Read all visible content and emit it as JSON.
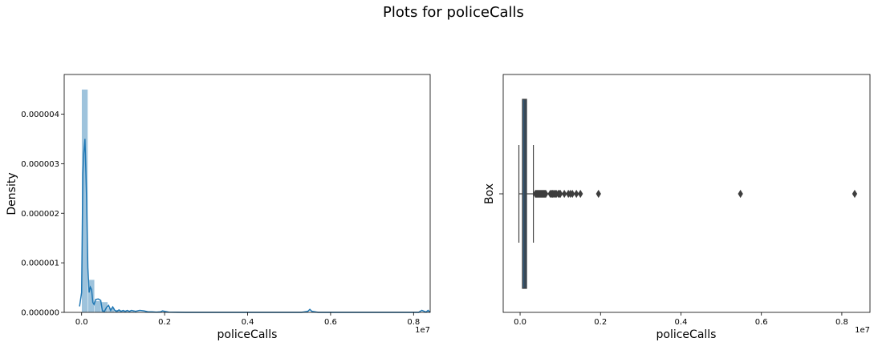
{
  "figure": {
    "suptitle": "Plots for policeCalls"
  },
  "chart_data": [
    {
      "type": "histogram",
      "xlabel": "policeCalls",
      "ylabel": "Density",
      "x_offset_label": "1e7",
      "xlim": [
        -0.042,
        0.84
      ],
      "ylim": [
        0,
        4.8e-06
      ],
      "x_ticks": [
        "0.0",
        "0.2",
        "0.4",
        "0.6",
        "0.8"
      ],
      "y_ticks": [
        "0.000000",
        "0.000001",
        "0.000002",
        "0.000003",
        "0.000004"
      ],
      "bar_color": "#9ec3dc",
      "line_color": "#1f77b4",
      "bins": [
        {
          "x0": 0.0,
          "x1": 0.015,
          "density": 4.5e-06
        },
        {
          "x0": 0.015,
          "x1": 0.031,
          "density": 6.6e-07
        },
        {
          "x0": 0.031,
          "x1": 0.047,
          "density": 2.3e-07
        },
        {
          "x0": 0.047,
          "x1": 0.063,
          "density": 2.1e-07
        },
        {
          "x0": 0.063,
          "x1": 0.079,
          "density": 9e-08
        },
        {
          "x0": 0.079,
          "x1": 0.095,
          "density": 5e-08
        },
        {
          "x0": 0.095,
          "x1": 0.111,
          "density": 4e-08
        },
        {
          "x0": 0.111,
          "x1": 0.127,
          "density": 2e-08
        },
        {
          "x0": 0.127,
          "x1": 0.143,
          "density": 1e-08
        },
        {
          "x0": 0.143,
          "x1": 0.159,
          "density": 1e-08
        }
      ],
      "kde": {
        "x": [
          -0.005,
          0.0,
          0.003,
          0.005,
          0.008,
          0.012,
          0.015,
          0.018,
          0.021,
          0.024,
          0.027,
          0.03,
          0.034,
          0.04,
          0.046,
          0.05,
          0.055,
          0.06,
          0.065,
          0.07,
          0.075,
          0.08,
          0.085,
          0.09,
          0.095,
          0.1,
          0.105,
          0.11,
          0.115,
          0.12,
          0.13,
          0.14,
          0.15,
          0.16,
          0.17,
          0.18,
          0.19,
          0.195,
          0.2,
          0.21,
          0.25,
          0.3,
          0.4,
          0.5,
          0.53,
          0.545,
          0.55,
          0.555,
          0.57,
          0.6,
          0.7,
          0.8,
          0.812,
          0.82,
          0.83,
          0.835,
          0.84
        ],
        "y": [
          1.2e-07,
          4e-07,
          2.8e-06,
          3.2e-06,
          3.5e-06,
          2.3e-06,
          9e-07,
          4e-07,
          5.1e-07,
          4.6e-07,
          2e-07,
          1.6e-07,
          2.6e-07,
          2.7e-07,
          2.4e-07,
          3e-08,
          2e-08,
          1e-07,
          1.4e-07,
          4e-08,
          1.1e-07,
          4e-08,
          2e-08,
          5e-08,
          2e-08,
          4e-08,
          2e-08,
          4e-08,
          2e-08,
          4e-08,
          2e-08,
          4e-08,
          3e-08,
          1e-08,
          1e-08,
          5e-09,
          1e-08,
          3e-08,
          2e-08,
          5e-09,
          0.0,
          0.0,
          0.0,
          0.0,
          0.0,
          2e-08,
          6e-08,
          2e-08,
          0.0,
          0.0,
          0.0,
          0.0,
          0.0,
          4e-08,
          5e-09,
          4e-08,
          0.0
        ]
      }
    },
    {
      "type": "box",
      "xlabel": "policeCalls",
      "ylabel": "Box",
      "x_offset_label": "1e7",
      "xlim": [
        -0.042,
        0.87
      ],
      "x_ticks": [
        "0.0",
        "0.2",
        "0.4",
        "0.6",
        "0.8"
      ],
      "box_color": "#345a7a",
      "whisker_low": -0.003,
      "q1": 0.006,
      "median": 0.012,
      "q3": 0.016,
      "whisker_high": 0.033,
      "outliers": [
        0.038,
        0.04,
        0.042,
        0.044,
        0.046,
        0.048,
        0.05,
        0.052,
        0.054,
        0.056,
        0.058,
        0.06,
        0.062,
        0.064,
        0.075,
        0.078,
        0.08,
        0.082,
        0.085,
        0.088,
        0.09,
        0.095,
        0.098,
        0.1,
        0.11,
        0.12,
        0.125,
        0.13,
        0.14,
        0.15,
        0.195,
        0.548,
        0.832
      ]
    }
  ]
}
